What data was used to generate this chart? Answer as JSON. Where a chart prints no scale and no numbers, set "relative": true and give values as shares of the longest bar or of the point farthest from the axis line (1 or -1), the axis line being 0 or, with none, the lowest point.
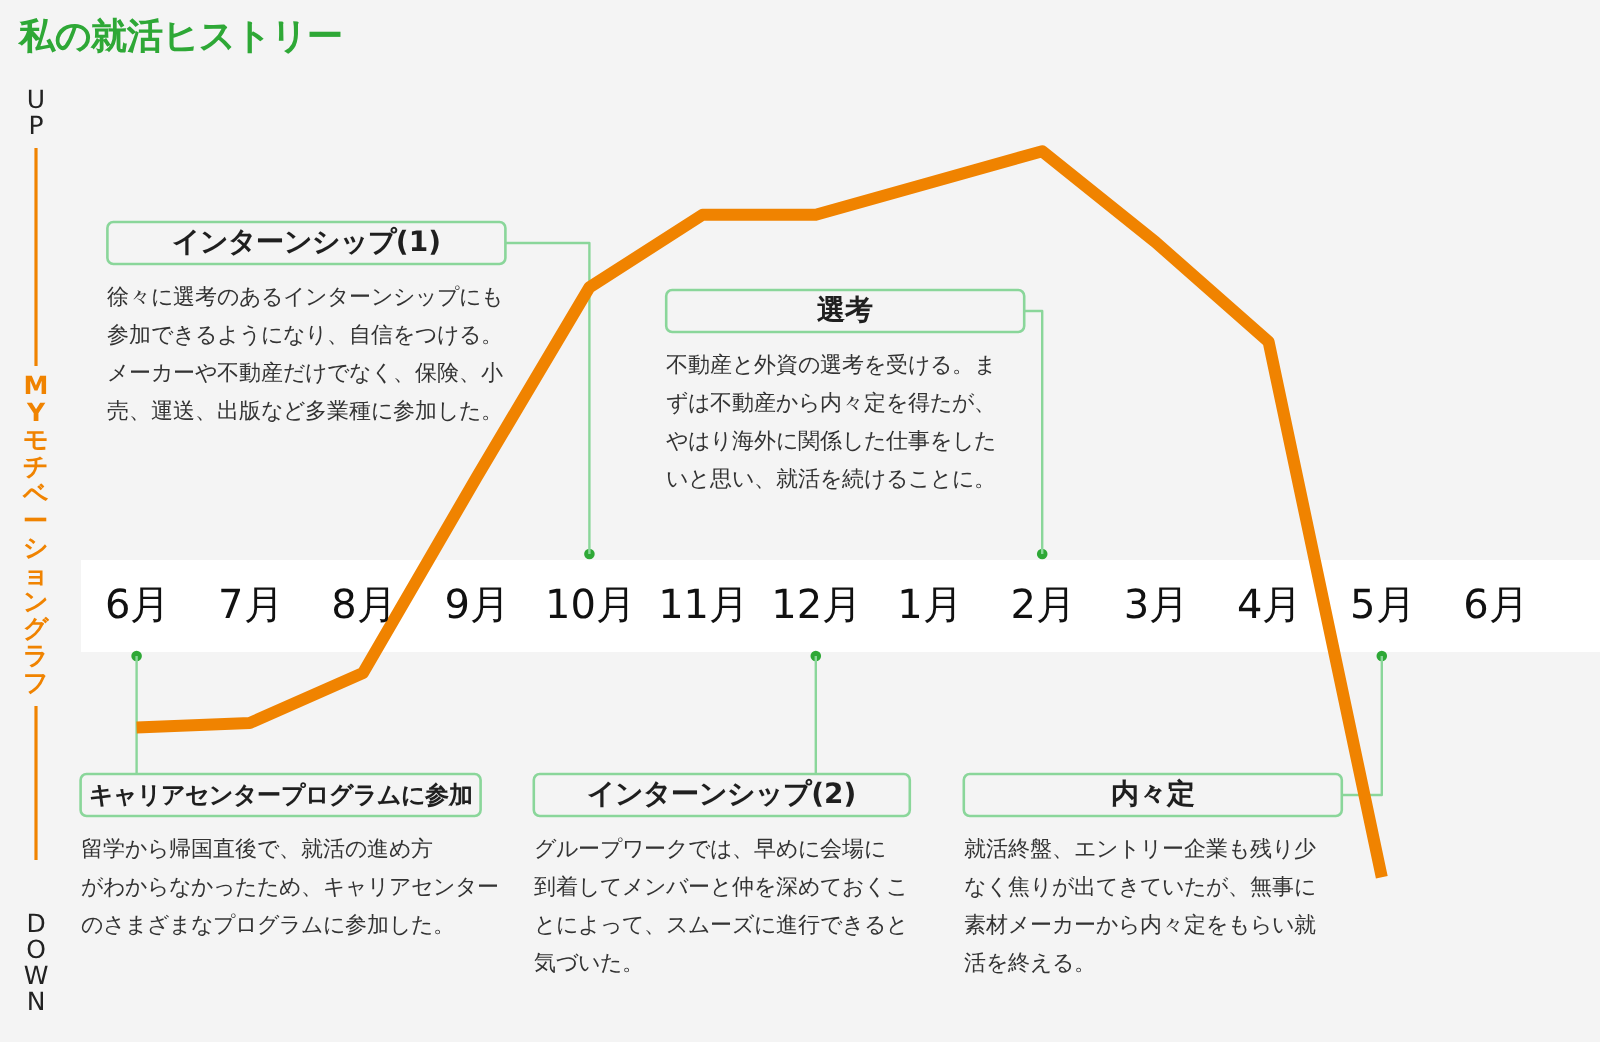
{
  "chart_data": {
    "type": "line",
    "title": "私の就活ヒストリー",
    "ylabel": "MYモチベーショングラフ",
    "relative": true,
    "line_style": "solid",
    "categories": [
      "6月",
      "7月",
      "8月",
      "9月",
      "10月",
      "11月",
      "12月",
      "1月",
      "2月",
      "3月",
      "4月",
      "5月",
      "6月"
    ],
    "series": [
      {
        "color": "#f08300",
        "values": [
          -0.27,
          -0.26,
          -0.15,
          0.28,
          0.7,
          0.86,
          0.86,
          0.93,
          1,
          0.8,
          0.58,
          -0.6,
          null
        ]
      }
    ],
    "annotations": [
      "UP",
      "DOWN",
      "キャリアセンタープログラムに参加",
      "留学から帰国直後で、就活の進め方がわからなかったため、キャリアセンターのさまざまなプログラムに参加した。",
      "インターンシップ(1)",
      "徐々に選考のあるインターンシップにも参加できるようになり、自信をつける。メーカーや不動産だけでなく、保険、小売、運送、出版など多業種に参加した。",
      "インターンシップ(2)",
      "グループワークでは、早めに会場に到着してメンバーと仲を深めておくことによって、スムーズに進行できると気づいた。",
      "選考",
      "不動産と外資の選考を受ける。まずは不動産から内々定を得たが、やはり海外に関係した仕事をしたいと思い、就活を続けることに。",
      "内々定",
      "就活終盤、エントリー企業も残り少なく焦りが出てきていたが、無事に素材メーカーから内々定をもらい就活を終える。"
    ]
  }
}
